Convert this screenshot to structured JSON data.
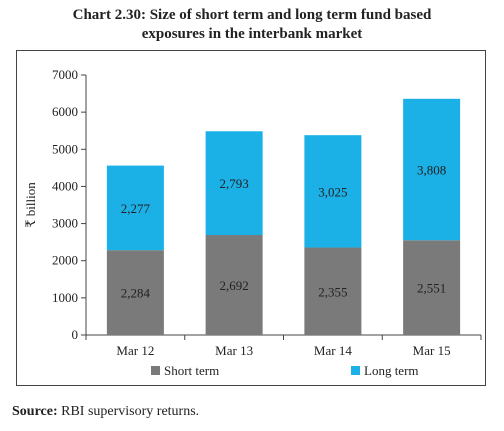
{
  "title_line1": "Chart 2.30: Size of short term and long term fund based",
  "title_line2": "exposures in the interbank market",
  "source_label": "Source:",
  "source_text": " RBI supervisory returns.",
  "colors": {
    "short_term": "#7a7a7a",
    "long_term": "#1bb0e6",
    "axis": "#444444"
  },
  "chart_data": {
    "type": "bar",
    "stacked": true,
    "title": "Chart 2.30: Size of short term and long term fund based exposures in the interbank market",
    "xlabel": "",
    "ylabel": "₹ billion",
    "ylim": [
      0,
      7000
    ],
    "yticks": [
      0,
      1000,
      2000,
      3000,
      4000,
      5000,
      6000,
      7000
    ],
    "categories": [
      "Mar 12",
      "Mar 13",
      "Mar 14",
      "Mar 15"
    ],
    "series": [
      {
        "name": "Short term",
        "values": [
          2284,
          2692,
          2355,
          2551
        ],
        "labels": [
          "2,284",
          "2,692",
          "2,355",
          "2,551"
        ]
      },
      {
        "name": "Long term",
        "values": [
          2277,
          2793,
          3025,
          3808
        ],
        "labels": [
          "2,277",
          "2,793",
          "3,025",
          "3,808"
        ]
      }
    ],
    "legend_position": "bottom",
    "grid": false
  }
}
